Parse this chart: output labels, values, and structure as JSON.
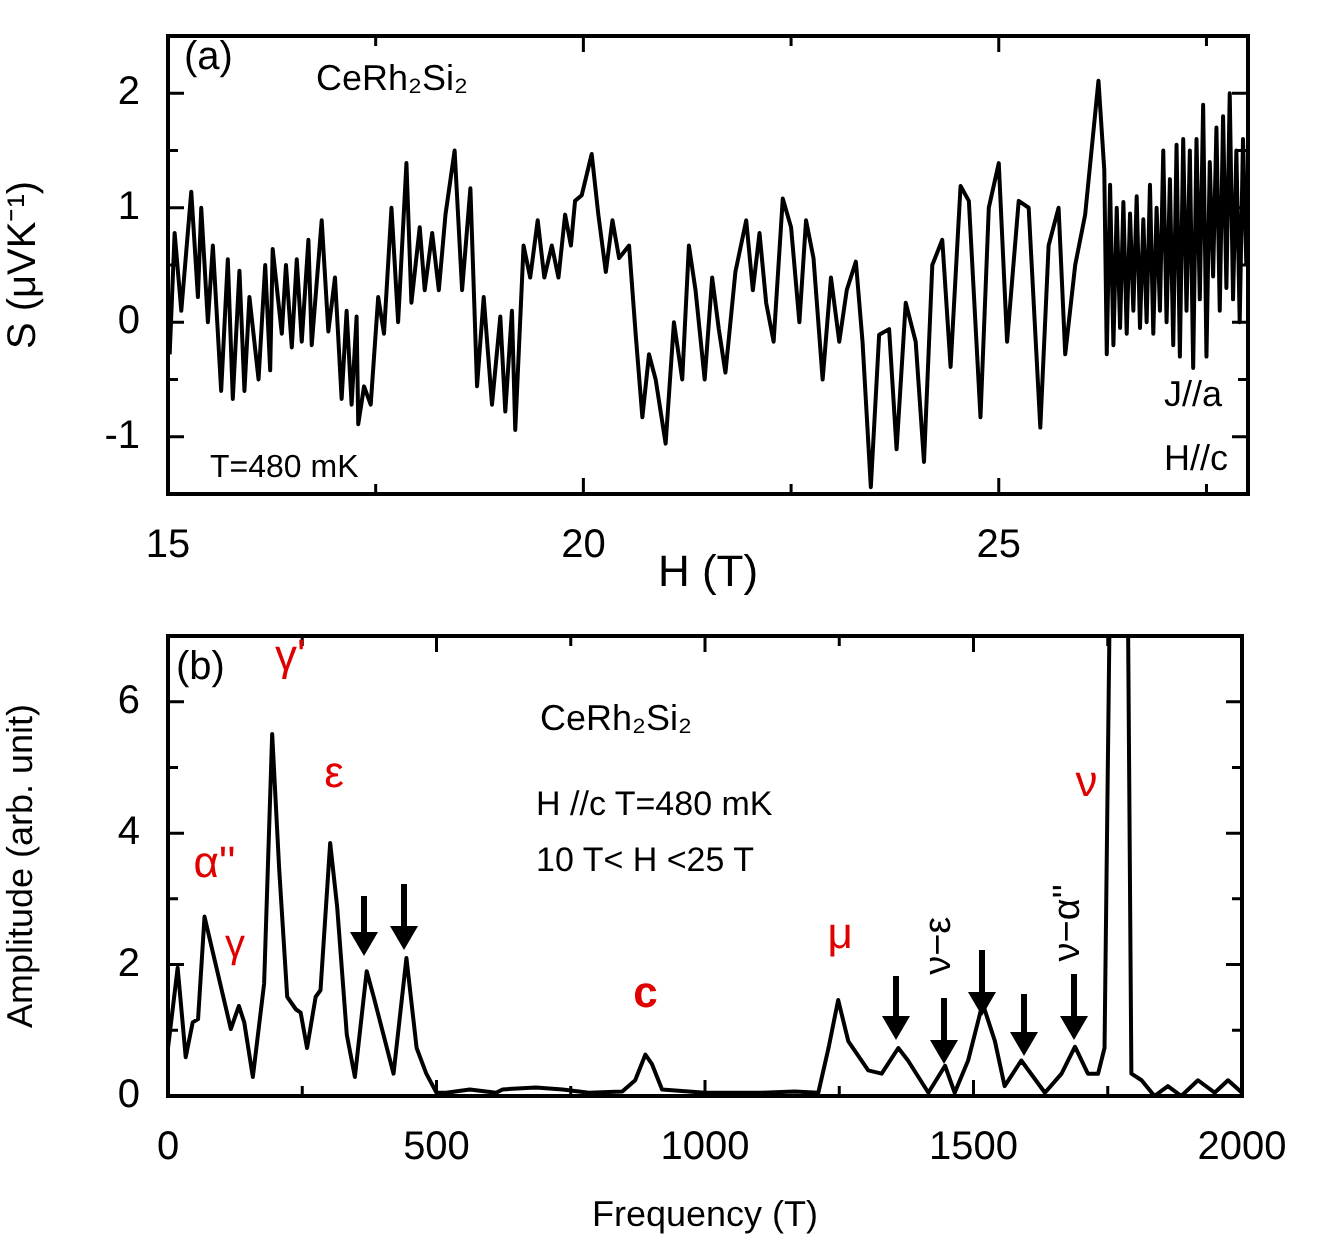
{
  "chart_data": [
    {
      "type": "line",
      "xlabel": "H (T)",
      "ylabel": "S (μVK⁻¹)",
      "xlim": [
        15,
        28
      ],
      "xticks": [
        15,
        {
          "value": 17.5,
          "label": null
        },
        20,
        {
          "value": 22.5,
          "label": null
        },
        25,
        {
          "value": 27.5,
          "label": null
        }
      ],
      "ylim": [
        -1.5,
        2.5
      ],
      "yticks": [
        -1,
        {
          "value": -0.5,
          "label": null
        },
        0,
        {
          "value": 0.5,
          "label": null
        },
        1,
        {
          "value": 1.5,
          "label": null
        },
        2
      ],
      "annotations": [
        "(a)",
        "CeRh₂Si₂",
        "T=480 mK",
        "J//a",
        "H//c"
      ],
      "x": [
        15.02,
        15.08,
        15.16,
        15.28,
        15.36,
        15.4,
        15.48,
        15.54,
        15.64,
        15.72,
        15.78,
        15.86,
        15.92,
        15.98,
        16.09,
        16.17,
        16.23,
        16.26,
        16.37,
        16.42,
        16.49,
        16.55,
        16.61,
        16.69,
        16.73,
        16.85,
        16.93,
        17.01,
        17.09,
        17.15,
        17.21,
        17.27,
        17.29,
        17.36,
        17.44,
        17.53,
        17.6,
        17.69,
        17.77,
        17.87,
        17.93,
        18.03,
        18.09,
        18.18,
        18.26,
        18.34,
        18.45,
        18.54,
        18.64,
        18.72,
        18.8,
        18.9,
        19.0,
        19.06,
        19.14,
        19.18,
        19.28,
        19.36,
        19.45,
        19.53,
        19.62,
        19.7,
        19.78,
        19.85,
        19.9,
        19.98,
        20.1,
        20.18,
        20.27,
        20.35,
        20.43,
        20.55,
        20.63,
        20.71,
        20.79,
        20.87,
        20.99,
        21.09,
        21.19,
        21.27,
        21.35,
        21.46,
        21.55,
        21.63,
        21.71,
        21.83,
        21.96,
        22.04,
        22.12,
        22.2,
        22.29,
        22.4,
        22.5,
        22.6,
        22.68,
        22.77,
        22.88,
        22.98,
        23.08,
        23.17,
        23.28,
        23.36,
        23.46,
        23.56,
        23.68,
        23.77,
        23.88,
        24.0,
        24.1,
        24.2,
        24.32,
        24.42,
        24.54,
        24.64,
        24.78,
        24.88,
        25.0,
        25.1,
        25.24,
        25.36,
        25.5,
        25.6,
        25.72,
        25.8,
        25.92,
        26.04,
        26.2,
        26.27,
        26.3,
        26.34,
        26.38,
        26.42,
        26.46,
        26.5,
        26.54,
        26.58,
        26.62,
        26.66,
        26.7,
        26.74,
        26.78,
        26.82,
        26.86,
        26.9,
        26.94,
        26.98,
        27.02,
        27.06,
        27.1,
        27.14,
        27.18,
        27.22,
        27.26,
        27.3,
        27.34,
        27.38,
        27.42,
        27.46,
        27.5,
        27.54,
        27.58,
        27.62,
        27.66,
        27.7,
        27.74,
        27.78,
        27.82,
        27.86,
        27.9,
        27.94,
        27.98
      ],
      "values": [
        -0.28,
        0.78,
        0.1,
        1.14,
        0.22,
        1.0,
        0,
        0.67,
        -0.6,
        0.55,
        -0.67,
        0.45,
        -0.6,
        0.22,
        -0.5,
        0.5,
        -0.42,
        0.64,
        -0.1,
        0.5,
        -0.22,
        0.55,
        -0.17,
        0.72,
        -0.2,
        0.89,
        -0.08,
        0.39,
        -0.67,
        0.1,
        -0.72,
        0.05,
        -0.89,
        -0.56,
        -0.72,
        0.22,
        -0.1,
        1.0,
        0,
        1.39,
        0.17,
        0.83,
        0.28,
        0.78,
        0.28,
        0.94,
        1.5,
        0.28,
        1.17,
        -0.56,
        0.22,
        -0.72,
        0.05,
        -0.78,
        0.1,
        -0.94,
        0.67,
        0.39,
        0.89,
        0.39,
        0.67,
        0.39,
        0.94,
        0.67,
        1.06,
        1.11,
        1.47,
        0.94,
        0.44,
        0.89,
        0.56,
        0.67,
        -0.11,
        -0.83,
        -0.28,
        -0.5,
        -1.06,
        0,
        -0.5,
        0.67,
        0.28,
        -0.5,
        0.39,
        -0.06,
        -0.44,
        0.44,
        0.89,
        0.28,
        0.78,
        0.17,
        -0.17,
        1.08,
        0.83,
        0,
        0.89,
        0.56,
        -0.5,
        0.39,
        -0.17,
        0.28,
        0.53,
        -0.17,
        -1.44,
        -0.11,
        -0.06,
        -1.11,
        0.17,
        -0.17,
        -1.22,
        0.5,
        0.72,
        -0.39,
        1.19,
        1.06,
        -0.83,
        1.0,
        1.39,
        -0.17,
        1.06,
        1.0,
        -0.92,
        0.67,
        1.0,
        -0.28,
        0.5,
        0.94,
        2.11,
        1.33,
        -0.28,
        1.2,
        -0.2,
        1.0,
        -0.05,
        1.05,
        -0.1,
        0.95,
        0.1,
        1.1,
        -0.05,
        0.9,
        0.0,
        1.2,
        -0.1,
        1.0,
        0.1,
        1.5,
        0.0,
        1.25,
        -0.2,
        1.55,
        -0.3,
        1.6,
        0.1,
        1.5,
        -0.4,
        1.6,
        0.2,
        1.9,
        -0.3,
        1.4,
        0.4,
        1.7,
        0.1,
        1.8,
        0.3,
        2.0,
        0.2,
        1.5,
        0.0,
        1.6,
        0.5
      ],
      "color": "#000000"
    },
    {
      "type": "line",
      "xlabel": "Frequency (T)",
      "ylabel": "Amplitude (arb. unit)",
      "xlim": [
        0,
        2000
      ],
      "xticks": [
        0,
        {
          "value": 250,
          "label": null
        },
        500,
        {
          "value": 750,
          "label": null
        },
        1000,
        {
          "value": 1250,
          "label": null
        },
        1500,
        {
          "value": 1750,
          "label": null
        },
        2000
      ],
      "ylim": [
        0,
        7
      ],
      "yticks": [
        0,
        {
          "value": 1,
          "label": null
        },
        2,
        {
          "value": 3,
          "label": null
        },
        4,
        {
          "value": 5,
          "label": null
        },
        6,
        {
          "value": 7,
          "label": null
        }
      ],
      "annotations": [
        "(b)",
        "CeRh₂Si₂",
        "H //c T=480 mK",
        "10 T< H <25 T",
        {
          "text": "α''",
          "x": 68,
          "y": 2.73
        },
        {
          "text": "γ",
          "x": 132,
          "y": 1.37
        },
        {
          "text": "γ'",
          "x": 194,
          "y": 5.51
        },
        {
          "text": "ε",
          "x": 302,
          "y": 3.85
        },
        {
          "text": "c",
          "x": 889,
          "y": 0.63
        },
        {
          "text": "μ",
          "x": 1248,
          "y": 1.46
        },
        {
          "text": "ν",
          "x": 1770,
          "y": 7
        },
        {
          "text": "ν−ε",
          "x": 1447,
          "y": 0.46
        },
        {
          "text": "ν−α''",
          "x": 1689,
          "y": 0.75
        }
      ],
      "x": [
        0,
        18,
        33,
        46,
        56,
        68,
        86,
        117,
        132,
        142,
        158,
        179,
        194,
        207,
        222,
        238,
        247,
        259,
        275,
        284,
        302,
        315,
        333,
        348,
        370,
        383,
        420,
        444,
        463,
        481,
        500,
        518,
        562,
        611,
        623,
        685,
        735,
        784,
        846,
        870,
        889,
        901,
        920,
        1000,
        1105,
        1167,
        1211,
        1230,
        1248,
        1267,
        1304,
        1329,
        1360,
        1378,
        1416,
        1447,
        1465,
        1490,
        1517,
        1540,
        1558,
        1589,
        1633,
        1664,
        1689,
        1713,
        1732,
        1744,
        1753,
        1770,
        1788,
        1794,
        1813,
        1837,
        1862,
        1887,
        1918,
        1949,
        1974,
        2000
      ],
      "values": [
        0.73,
        1.95,
        0.59,
        1.12,
        1.17,
        2.73,
        2.1,
        1.02,
        1.37,
        1.12,
        0.29,
        1.71,
        5.51,
        3.46,
        1.51,
        1.32,
        1.27,
        0.73,
        1.51,
        1.61,
        3.85,
        2.88,
        0.93,
        0.29,
        1.9,
        1.51,
        0.34,
        2.1,
        0.73,
        0.34,
        0.05,
        0.05,
        0.1,
        0.05,
        0.1,
        0.13,
        0.1,
        0.05,
        0.07,
        0.24,
        0.63,
        0.49,
        0.1,
        0.05,
        0.05,
        0.07,
        0.05,
        0.73,
        1.46,
        0.83,
        0.39,
        0.34,
        0.73,
        0.54,
        0.05,
        0.46,
        0.05,
        0.54,
        1.41,
        0.83,
        0.15,
        0.54,
        0.05,
        0.34,
        0.75,
        0.34,
        0.34,
        0.73,
        7,
        null,
        7,
        0.34,
        0.24,
        0,
        0.15,
        0,
        0.24,
        0.05,
        0.24,
        0.05
      ],
      "color": "#000000"
    }
  ]
}
